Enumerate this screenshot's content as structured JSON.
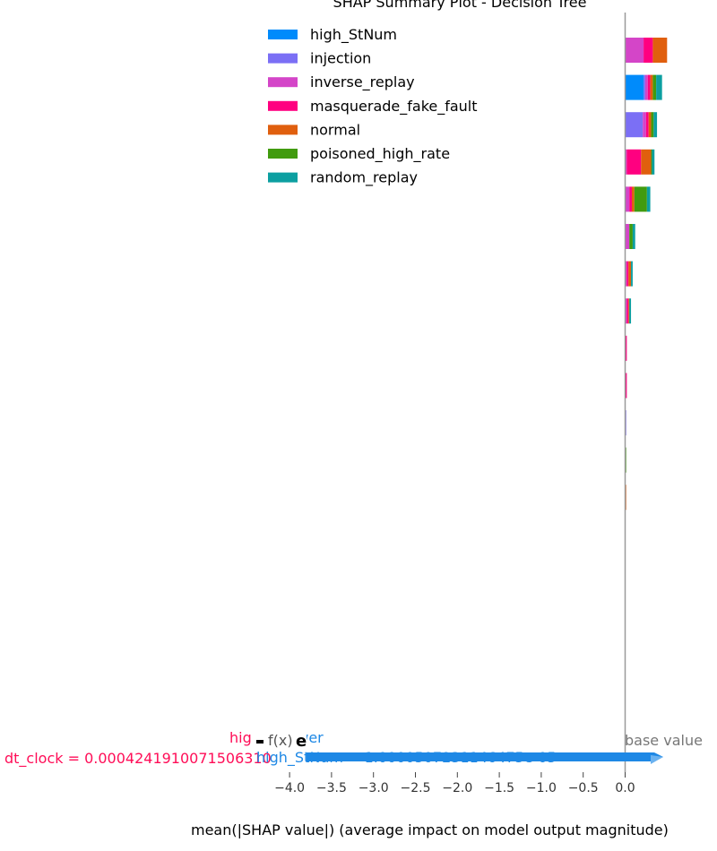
{
  "chart_data": {
    "type": "bar",
    "orientation": "horizontal",
    "stacked": true,
    "title": "SHAP Summary Plot - Decision Tree",
    "xlabel": "mean(|SHAP value|) (average impact on model output magnitude)",
    "xlim": [
      -4.25,
      1.1
    ],
    "xticks": [
      -4.0,
      -3.5,
      -3.0,
      -2.5,
      -2.0,
      -1.5,
      -1.0,
      -0.5,
      0.0
    ],
    "xtick_labels": [
      "−4.0",
      "−3.5",
      "−3.0",
      "−2.5",
      "−2.0",
      "−1.5",
      "−1.0",
      "−0.5",
      "0.0"
    ],
    "legend_position": "top",
    "grid": false,
    "series": [
      {
        "name": "high_StNum",
        "color": "#008bfb",
        "values": [
          0.0,
          0.22,
          0.0,
          0.0,
          0.0,
          0.0,
          0.0,
          0.0,
          0.0,
          0.0,
          0.0,
          0.0,
          0.0
        ]
      },
      {
        "name": "injection",
        "color": "#7b6ff5",
        "values": [
          0.0,
          0.02,
          0.21,
          0.0,
          0.0,
          0.0,
          0.0,
          0.0,
          0.0,
          0.0,
          0.008,
          0.0,
          0.0
        ]
      },
      {
        "name": "inverse_replay",
        "color": "#d445c8",
        "values": [
          0.22,
          0.03,
          0.04,
          0.02,
          0.05,
          0.05,
          0.02,
          0.02,
          0.0,
          0.0,
          0.0,
          0.0,
          0.0
        ]
      },
      {
        "name": "masquerade_fake_fault",
        "color": "#ff0080",
        "values": [
          0.11,
          0.03,
          0.03,
          0.17,
          0.03,
          0.0,
          0.02,
          0.02,
          0.02,
          0.02,
          0.0,
          0.0,
          0.0
        ]
      },
      {
        "name": "normal",
        "color": "#e05f0e",
        "values": [
          0.17,
          0.03,
          0.03,
          0.12,
          0.03,
          0.0,
          0.03,
          0.01,
          0.0,
          0.0,
          0.0,
          0.0,
          0.012
        ]
      },
      {
        "name": "poisoned_high_rate",
        "color": "#419b0f",
        "values": [
          0.0,
          0.04,
          0.03,
          0.01,
          0.15,
          0.04,
          0.0,
          0.0,
          0.0,
          0.0,
          0.0,
          0.012,
          0.0
        ]
      },
      {
        "name": "random_replay",
        "color": "#0c9fa1",
        "values": [
          0.0,
          0.07,
          0.04,
          0.03,
          0.04,
          0.03,
          0.02,
          0.02,
          0.0,
          0.0,
          0.0,
          0.0,
          0.0
        ]
      }
    ],
    "overlay": {
      "label_high": "high",
      "label_lower": "lower",
      "fx_label": "f(x)",
      "value_glyph": "e",
      "base_value_label": "base value",
      "feature_a": "dt_clock = 0.0004241910071506310",
      "feature_b": "high_StNum = 1.0000507231146475e-05"
    }
  }
}
